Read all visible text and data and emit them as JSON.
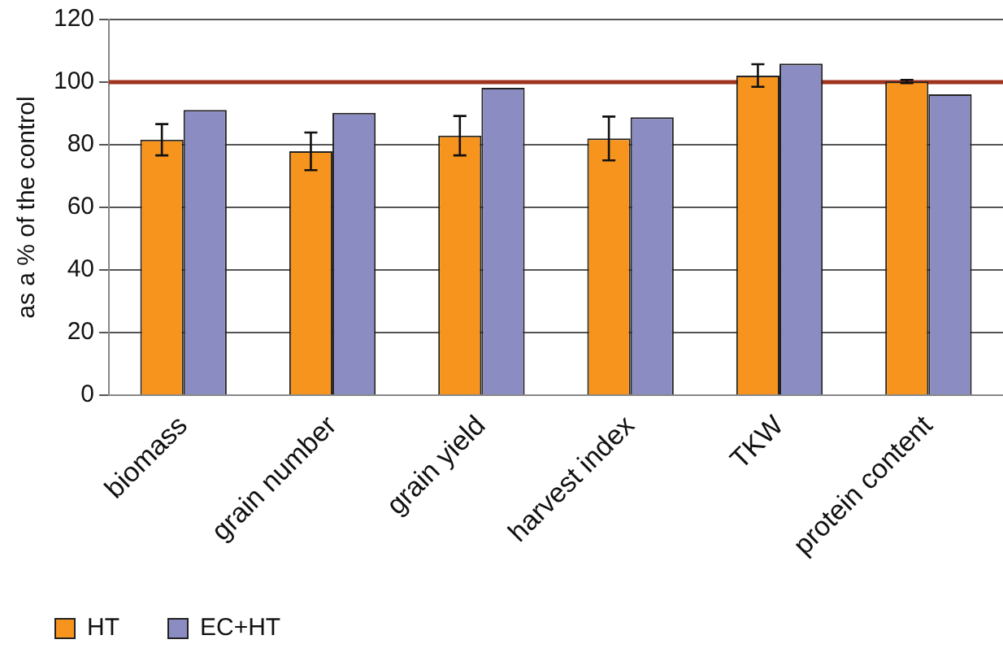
{
  "chart_data": {
    "type": "bar",
    "ylabel": "as a % of the control",
    "categories": [
      "biomass",
      "grain number",
      "grain yield",
      "harvest index",
      "TKW",
      "protein content"
    ],
    "series": [
      {
        "name": "HT",
        "color": "#f7941d",
        "values": [
          81.6,
          77.9,
          82.9,
          82,
          102.1,
          100.2
        ],
        "errors": [
          5,
          6,
          6.3,
          7,
          3.6,
          0.5
        ]
      },
      {
        "name": "EC+HT",
        "color": "#8b8dc2",
        "values": [
          91.1,
          90.2,
          98.2,
          88.8,
          105.9,
          96.1
        ]
      }
    ],
    "ylim": [
      0,
      120
    ],
    "yticks": [
      0,
      20,
      40,
      60,
      80,
      100,
      120
    ],
    "grid": "y",
    "legend": "bottom left",
    "ref_lines": [
      {
        "axis": "y",
        "value": 100,
        "color": "#a0321e"
      }
    ]
  }
}
